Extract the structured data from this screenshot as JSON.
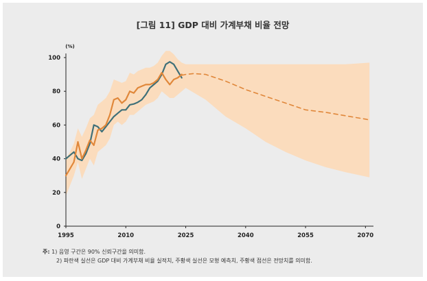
{
  "title": "[그림 11] GDP 대비 가계부채 비율 전망",
  "chart_data": {
    "type": "line",
    "title": "[그림 11] GDP 대비 가계부채 비율 전망",
    "ylabel": "(%)",
    "xlabel": "",
    "xlim": [
      1995,
      2072
    ],
    "ylim": [
      0,
      100
    ],
    "xticks": [
      1995,
      2010,
      2025,
      2040,
      2055,
      2070
    ],
    "yticks": [
      0,
      20,
      40,
      60,
      80,
      100
    ],
    "series": [
      {
        "name": "GDP 대비 가계부채 비율 실적치",
        "color": "#3e6f78",
        "style": "solid",
        "x": [
          1995,
          1996,
          1997,
          1998,
          1999,
          2000,
          2001,
          2002,
          2003,
          2004,
          2005,
          2006,
          2007,
          2008,
          2009,
          2010,
          2011,
          2012,
          2013,
          2014,
          2015,
          2016,
          2017,
          2018,
          2019,
          2020,
          2021,
          2022,
          2023,
          2024
        ],
        "values": [
          40,
          42,
          44,
          40,
          39,
          43,
          49,
          60,
          59,
          56,
          59,
          62,
          65,
          67,
          69,
          69,
          72,
          72.5,
          73.5,
          75,
          78,
          82,
          84,
          86,
          90,
          96,
          97.5,
          96,
          92,
          88
        ]
      },
      {
        "name": "모형 예측치",
        "color": "#e0873a",
        "style": "solid",
        "x": [
          1995,
          1996,
          1997,
          1998,
          1999,
          2000,
          2001,
          2002,
          2003,
          2004,
          2005,
          2006,
          2007,
          2008,
          2009,
          2010,
          2011,
          2012,
          2013,
          2014,
          2015,
          2016,
          2017,
          2018,
          2019,
          2020,
          2021,
          2022,
          2023,
          2024
        ],
        "values": [
          30,
          34,
          38,
          50,
          40,
          45,
          51,
          48,
          57,
          58,
          60,
          66,
          75,
          76,
          73,
          75,
          80,
          79,
          82,
          83,
          84,
          84,
          85,
          87,
          91,
          87,
          84,
          87,
          88,
          90
        ]
      },
      {
        "name": "전망치",
        "color": "#e0873a",
        "style": "dashed",
        "x": [
          2024,
          2025,
          2027,
          2030,
          2035,
          2040,
          2045,
          2050,
          2055,
          2060,
          2065,
          2070,
          2071
        ],
        "values": [
          89.5,
          90,
          90.5,
          90,
          86,
          81,
          77,
          73,
          69,
          67.5,
          65.5,
          63.5,
          63
        ]
      }
    ],
    "band": {
      "name": "90% 신뢰구간",
      "color": "#fbdcbd",
      "x": [
        1995,
        1996,
        1997,
        1998,
        1999,
        2000,
        2001,
        2002,
        2003,
        2004,
        2005,
        2006,
        2007,
        2008,
        2009,
        2010,
        2011,
        2012,
        2013,
        2014,
        2015,
        2016,
        2017,
        2018,
        2019,
        2020,
        2021,
        2022,
        2023,
        2024,
        2025,
        2030,
        2035,
        2040,
        2045,
        2050,
        2055,
        2060,
        2065,
        2071
      ],
      "upper": [
        40,
        44,
        49,
        58,
        53,
        58,
        64,
        66,
        72,
        74,
        76,
        80,
        87,
        86,
        85,
        86,
        91,
        90,
        92,
        93,
        94,
        94,
        95,
        97,
        101,
        104,
        104,
        102,
        99,
        97,
        96,
        96,
        96,
        96,
        96,
        96,
        96,
        96,
        96,
        97
      ],
      "lower": [
        18,
        24,
        30,
        38,
        28,
        34,
        40,
        36,
        44,
        46,
        48,
        52,
        60,
        62,
        60,
        62,
        66,
        66,
        68,
        70,
        72,
        73,
        74,
        76,
        80,
        78,
        76,
        76,
        78,
        80,
        82,
        75,
        65,
        58,
        50,
        44,
        39,
        35,
        32,
        29
      ]
    }
  },
  "notes": {
    "prefix": "주:",
    "line1": "1) 음영 구간은 90% 신뢰구간을 의미함.",
    "line2": "2) 파란색 실선은 GDP 대비 가계부채 비율 실적치, 주황색 실선은 모형 예측치, 주황색 점선은 전망치를 의미함."
  }
}
